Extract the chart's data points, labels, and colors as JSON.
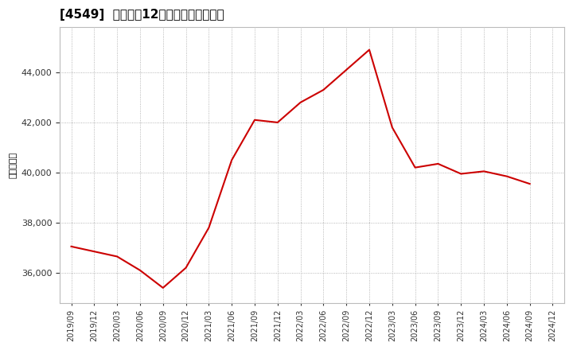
{
  "title": "[4549]  売上高の12か月移動合計の推移",
  "ylabel": "（百万円）",
  "line_color": "#cc0000",
  "background_color": "#ffffff",
  "plot_bg_color": "#ffffff",
  "grid_color": "#999999",
  "dates": [
    "2019/09",
    "2019/12",
    "2020/03",
    "2020/06",
    "2020/09",
    "2020/12",
    "2021/03",
    "2021/06",
    "2021/09",
    "2021/12",
    "2022/03",
    "2022/06",
    "2022/09",
    "2022/12",
    "2023/03",
    "2023/06",
    "2023/09",
    "2023/12",
    "2024/03",
    "2024/06",
    "2024/09",
    "2024/12"
  ],
  "values": [
    37050,
    36850,
    36650,
    36100,
    35400,
    36200,
    37800,
    40500,
    42100,
    42000,
    42800,
    43300,
    44100,
    44900,
    41800,
    40200,
    40350,
    39950,
    40050,
    39850,
    39550,
    null
  ],
  "ylim": [
    34800,
    45800
  ],
  "yticks": [
    36000,
    38000,
    40000,
    42000,
    44000
  ]
}
